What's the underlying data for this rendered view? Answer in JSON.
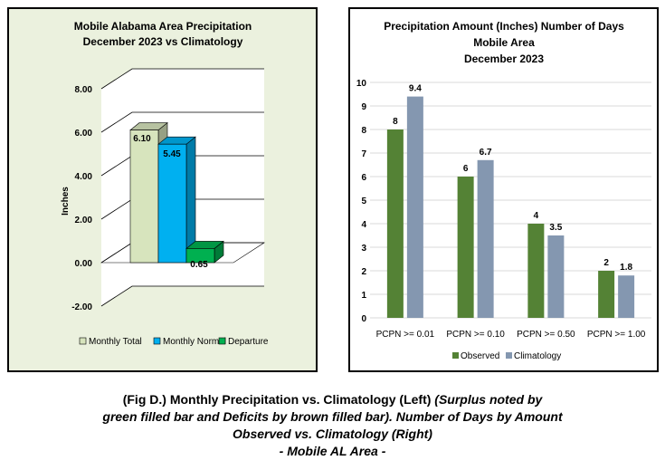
{
  "colors": {
    "monthly_total": "#d7e4bd",
    "monthly_normal": "#00b0f0",
    "departure": "#00b050",
    "observed": "#548235",
    "climatology": "#8497b0"
  },
  "chart_data": [
    {
      "type": "bar",
      "title": "Mobile Alabama Area Precipitation December 2023 vs Climatology",
      "title_lines": [
        "Mobile Alabama Area Precipitation",
        "December 2023 vs Climatology"
      ],
      "ylabel": "Inches",
      "ylim": [
        -2,
        8
      ],
      "ticks": [
        "-2.00",
        "0.00",
        "2.00",
        "4.00",
        "6.00",
        "8.00"
      ],
      "tick_values": [
        -2,
        0,
        2,
        4,
        6,
        8
      ],
      "style": "3d",
      "legend_position": "bottom",
      "series": [
        {
          "name": "Monthly Total",
          "value": 6.1,
          "label": "6.10"
        },
        {
          "name": "Monthly Normal",
          "value": 5.45,
          "label": "5.45"
        },
        {
          "name": "Departure",
          "value": 0.65,
          "label": "0.65"
        }
      ]
    },
    {
      "type": "bar",
      "title": "Precipitation Amount (Inches) Number of Days Mobile Area December 2023",
      "title_lines": [
        "Precipitation Amount (Inches) Number of Days",
        "Mobile Area",
        "December 2023"
      ],
      "categories": [
        "PCPN >= 0.01",
        "PCPN >= 0.10",
        "PCPN >= 0.50",
        "PCPN >= 1.00"
      ],
      "ylim": [
        0,
        10
      ],
      "ticks": [
        "0",
        "1",
        "2",
        "3",
        "4",
        "5",
        "6",
        "7",
        "8",
        "9",
        "10"
      ],
      "grid": true,
      "legend_position": "bottom",
      "series": [
        {
          "name": "Observed",
          "values": [
            8,
            6,
            4,
            2
          ],
          "labels": [
            "8",
            "6",
            "4",
            "2"
          ]
        },
        {
          "name": "Climatology",
          "values": [
            9.4,
            6.7,
            3.5,
            1.8
          ],
          "labels": [
            "9.4",
            "6.7",
            "3.5",
            "1.8"
          ]
        }
      ]
    }
  ],
  "caption": {
    "line1_bold": "(Fig D.) Monthly Precipitation vs. Climatology (Left) ",
    "line1_italic": "(Surplus noted by",
    "line2": "green filled bar and Deficits by brown filled bar). Number of Days by Amount",
    "line3": "Observed vs. Climatology (Right)",
    "line4": "- Mobile AL Area -"
  }
}
